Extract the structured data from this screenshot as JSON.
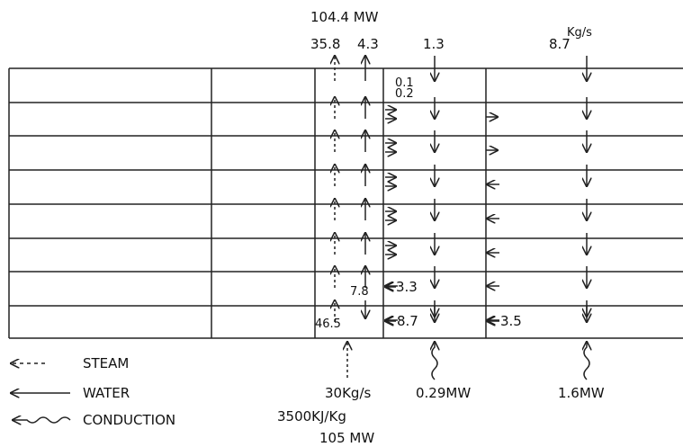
{
  "header": {
    "total_power": "104.4 MW"
  },
  "top_flows": {
    "steam": "35.8",
    "water": "4.3",
    "column2": "1.3",
    "column3": "8.7",
    "unit": "Kg/s"
  },
  "side_flows": {
    "a": "0.1",
    "b": "0.2"
  },
  "lower_flows": {
    "water_up": "7.8",
    "left_in": "3.3",
    "steam_bottom": "46.5",
    "left_bottom": "8.7",
    "right_bottom": "3.5"
  },
  "legend": [
    "STEAM",
    "WATER",
    "CONDUCTION"
  ],
  "bottom": {
    "steam_flow": "30Kg/s",
    "conduction_mid": "0.29MW",
    "conduction_right": "1.6MW",
    "enthalpy": "3500KJ/Kg",
    "power": "105 MW"
  }
}
